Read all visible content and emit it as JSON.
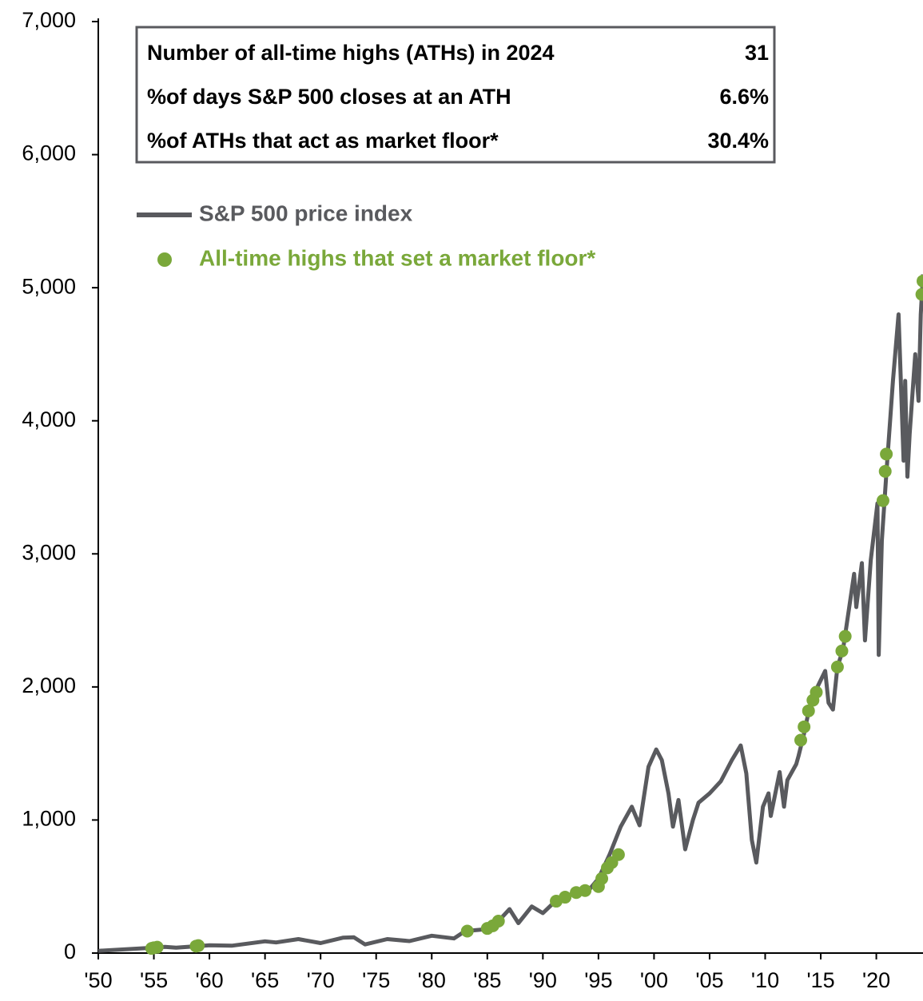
{
  "chart_data": {
    "type": "line",
    "info_box": [
      [
        "Number of all-time highs (ATHs) in 2024",
        "31"
      ],
      [
        "%of days S&P 500 closes at an ATH",
        "6.6%"
      ],
      [
        "%of ATHs that act as market floor*",
        "30.4%"
      ]
    ],
    "xlim": [
      1950,
      2024.2
    ],
    "ylim": [
      0,
      7000
    ],
    "xticks": [
      {
        "value": 1950,
        "label": "'50"
      },
      {
        "value": 1955,
        "label": "'55"
      },
      {
        "value": 1960,
        "label": "'60"
      },
      {
        "value": 1965,
        "label": "'65"
      },
      {
        "value": 1970,
        "label": "'70"
      },
      {
        "value": 1975,
        "label": "'75"
      },
      {
        "value": 1980,
        "label": "'80"
      },
      {
        "value": 1985,
        "label": "'85"
      },
      {
        "value": 1990,
        "label": "'90"
      },
      {
        "value": 1995,
        "label": "'95"
      },
      {
        "value": 2000,
        "label": "'00"
      },
      {
        "value": 2005,
        "label": "'05"
      },
      {
        "value": 2010,
        "label": "'10"
      },
      {
        "value": 2015,
        "label": "'15"
      },
      {
        "value": 2020,
        "label": "'20"
      }
    ],
    "yticks": [
      0,
      {
        "value": 1000,
        "label": "1,000"
      },
      {
        "value": 2000,
        "label": "2,000"
      },
      {
        "value": 3000,
        "label": "3,000"
      },
      {
        "value": 4000,
        "label": "4,000"
      },
      {
        "value": 5000,
        "label": "5,000"
      },
      {
        "value": 6000,
        "label": "6,000"
      },
      {
        "value": 7000,
        "label": "7,000"
      }
    ],
    "series": [
      {
        "name": "S&P 500 price index",
        "type": "line",
        "color": "#595a5e",
        "x": [
          1950,
          1955,
          1956,
          1957,
          1960,
          1962,
          1965,
          1966,
          1968,
          1970,
          1972,
          1973,
          1974,
          1976,
          1978,
          1980,
          1982,
          1983,
          1985,
          1986,
          1987,
          1987.8,
          1989,
          1990,
          1991,
          1993,
          1994,
          1995,
          1996,
          1997,
          1998,
          1998.7,
          1999.5,
          2000.2,
          2000.7,
          2001.3,
          2001.7,
          2002.2,
          2002.8,
          2003.5,
          2004,
          2005,
          2006,
          2007,
          2007.8,
          2008.3,
          2008.8,
          2009.2,
          2009.8,
          2010.3,
          2010.5,
          2011.3,
          2011.7,
          2012,
          2012.8,
          2013,
          2013.5,
          2014,
          2014.7,
          2015.4,
          2015.7,
          2016.1,
          2016.5,
          2017,
          2018,
          2018.2,
          2018.7,
          2018.98,
          2019.5,
          2020.1,
          2020.22,
          2020.5,
          2020.9,
          2021.5,
          2022,
          2022.45,
          2022.6,
          2022.8,
          2023,
          2023.5,
          2023.8,
          2024,
          2024.2
        ],
        "values": [
          17,
          40,
          47,
          40,
          58,
          55,
          88,
          80,
          105,
          75,
          115,
          118,
          65,
          105,
          90,
          130,
          110,
          165,
          180,
          240,
          330,
          225,
          350,
          300,
          380,
          460,
          460,
          560,
          740,
          950,
          1100,
          960,
          1400,
          1530,
          1450,
          1200,
          950,
          1150,
          780,
          1000,
          1130,
          1200,
          1290,
          1450,
          1560,
          1350,
          850,
          680,
          1100,
          1200,
          1030,
          1360,
          1100,
          1300,
          1420,
          1480,
          1650,
          1850,
          2000,
          2120,
          1880,
          1830,
          2150,
          2280,
          2850,
          2600,
          2930,
          2350,
          2950,
          3380,
          2240,
          3100,
          3600,
          4300,
          4800,
          3700,
          4300,
          3580,
          3900,
          4500,
          4150,
          4800,
          5100
        ]
      },
      {
        "name": "All-time highs that set a market floor*",
        "type": "scatter",
        "color": "#7aa83a",
        "x": [
          1954.8,
          1955,
          1955.3,
          1958.8,
          1959,
          1983.2,
          1985,
          1985.5,
          1986,
          1991.2,
          1992,
          1993,
          1993.8,
          1995,
          1995.3,
          1995.8,
          1996.2,
          1996.8,
          2013.2,
          2013.5,
          2013.9,
          2014.3,
          2014.6,
          2016.5,
          2016.9,
          2017.2,
          2020.6,
          2020.8,
          2020.9,
          2024.1,
          2024.2
        ],
        "values": [
          35,
          40,
          44,
          52,
          56,
          165,
          185,
          205,
          240,
          390,
          420,
          455,
          470,
          500,
          560,
          640,
          680,
          740,
          1600,
          1700,
          1820,
          1900,
          1960,
          2150,
          2270,
          2380,
          3400,
          3620,
          3750,
          4950,
          5050
        ]
      }
    ]
  }
}
